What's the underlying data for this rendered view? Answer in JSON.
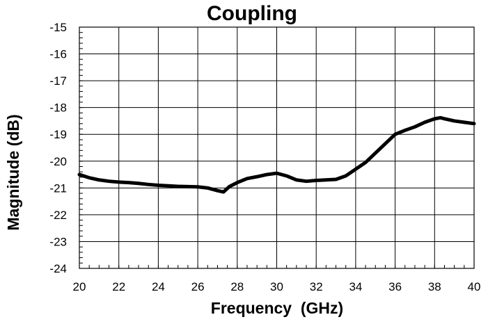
{
  "chart_data": {
    "type": "line",
    "title": "Coupling",
    "xlabel": "Frequency  (GHz)",
    "ylabel": "Magnitude (dB)",
    "xlim": [
      20,
      40
    ],
    "ylim": [
      -24,
      -15
    ],
    "x_ticks": [
      20,
      22,
      24,
      26,
      28,
      30,
      32,
      34,
      36,
      38,
      40
    ],
    "y_ticks": [
      -15,
      -16,
      -17,
      -18,
      -19,
      -20,
      -21,
      -22,
      -23,
      -24
    ],
    "grid": true,
    "legend": "none",
    "series_color": "#000000",
    "series": [
      {
        "x": [
          20.0,
          20.5,
          21.0,
          21.5,
          22.0,
          22.5,
          23.0,
          23.5,
          24.0,
          24.5,
          25.0,
          25.5,
          26.0,
          26.5,
          27.0,
          27.3,
          27.6,
          28.0,
          28.5,
          29.0,
          29.5,
          30.0,
          30.5,
          31.0,
          31.5,
          32.0,
          32.5,
          33.0,
          33.5,
          34.0,
          34.5,
          35.0,
          35.5,
          36.0,
          36.5,
          37.0,
          37.5,
          38.0,
          38.3,
          38.5,
          39.0,
          39.5,
          40.0
        ],
        "y": [
          -20.5,
          -20.62,
          -20.7,
          -20.75,
          -20.78,
          -20.8,
          -20.83,
          -20.87,
          -20.9,
          -20.92,
          -20.94,
          -20.95,
          -20.96,
          -21.0,
          -21.1,
          -21.15,
          -20.95,
          -20.8,
          -20.65,
          -20.58,
          -20.5,
          -20.45,
          -20.55,
          -20.7,
          -20.75,
          -20.72,
          -20.7,
          -20.68,
          -20.55,
          -20.3,
          -20.05,
          -19.7,
          -19.35,
          -19.0,
          -18.85,
          -18.72,
          -18.55,
          -18.42,
          -18.38,
          -18.42,
          -18.5,
          -18.55,
          -18.6
        ]
      }
    ]
  }
}
